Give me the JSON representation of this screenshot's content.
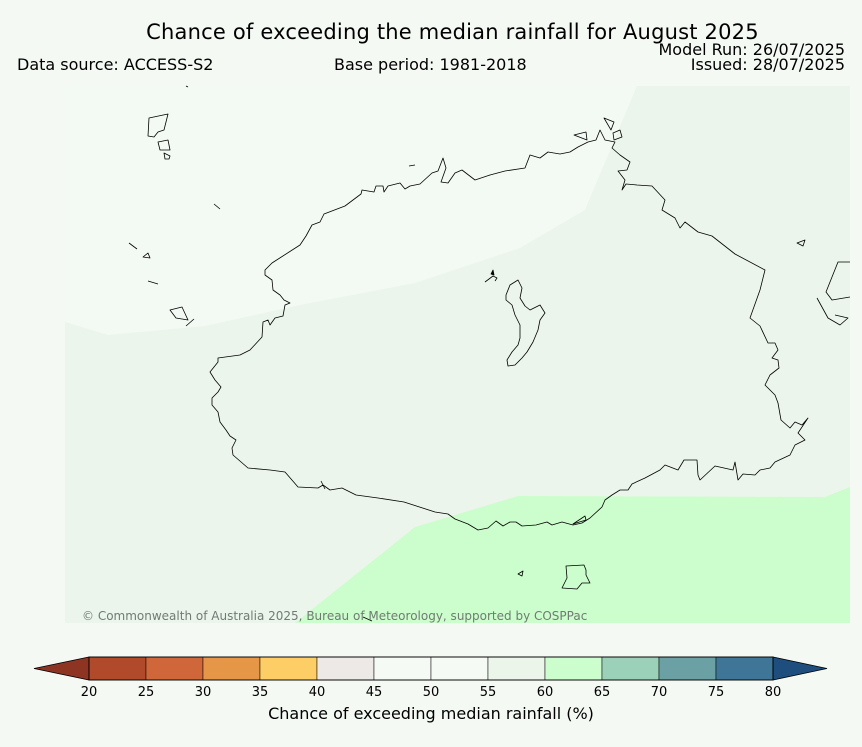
{
  "header": {
    "title": "Chance of exceeding the median rainfall for August 2025",
    "data_source": "Data source: ACCESS-S2",
    "base_period": "Base period: 1981-2018",
    "model_run": "Model Run: 26/07/2025",
    "issued": "Issued: 28/07/2025"
  },
  "map": {
    "copyright": "© Commonwealth of Australia 2025, Bureau of Meteorology, supported by COSPPac",
    "background_color": "#f3f9f3",
    "region_colors": {
      "50-55": "#f3f9f3",
      "55-60": "#ebf5eb",
      "60-65": "#ccfdcc"
    }
  },
  "colorbar": {
    "label": "Chance of exceeding median rainfall (%)",
    "ticks": [
      "20",
      "25",
      "30",
      "35",
      "40",
      "45",
      "50",
      "55",
      "60",
      "65",
      "70",
      "75",
      "80"
    ],
    "colors": [
      "#8e3422",
      "#b14a2a",
      "#d0673a",
      "#e59647",
      "#fdcd66",
      "#ede9e6",
      "#f5faf5",
      "#f5faf5",
      "#ebf5ea",
      "#ccfdcc",
      "#9cd1b9",
      "#6ba1a5",
      "#3f7597",
      "#1d4e7d"
    ]
  }
}
